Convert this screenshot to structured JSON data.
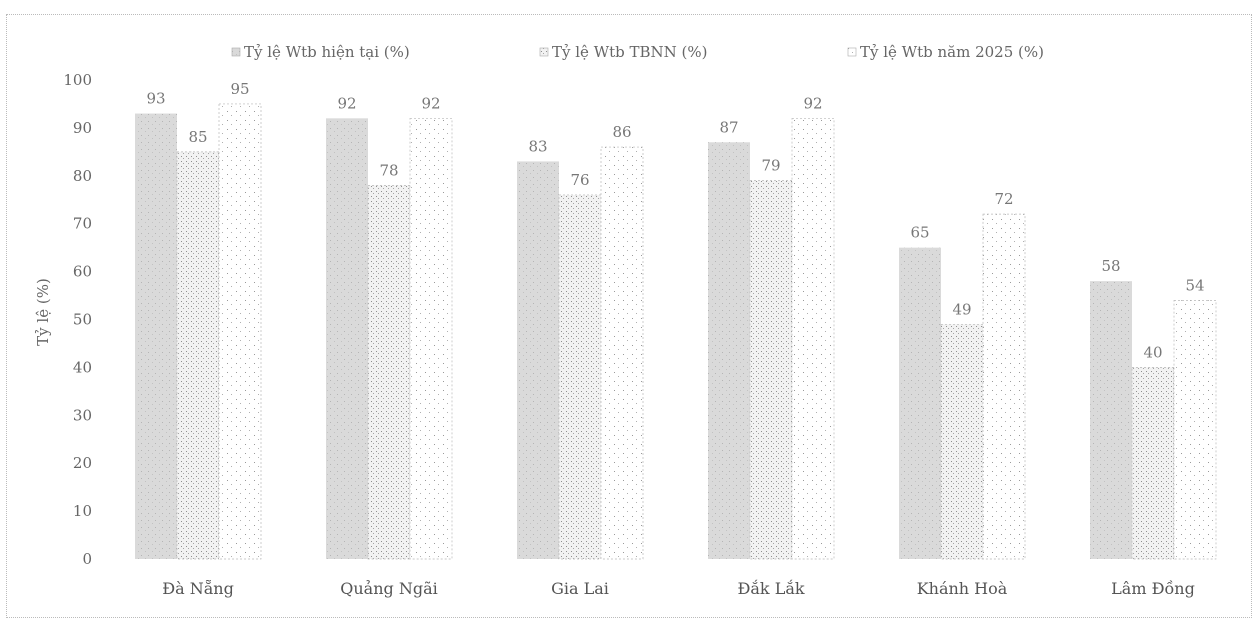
{
  "chart_data": {
    "type": "bar",
    "title": "",
    "xlabel": "",
    "ylabel": "Tỷ lệ (%)",
    "ylim": [
      0,
      100
    ],
    "yticks": [
      0,
      10,
      20,
      30,
      40,
      50,
      60,
      70,
      80,
      90,
      100
    ],
    "grid": false,
    "legend_position": "top",
    "categories": [
      "Đà Nẵng",
      "Quảng Ngãi",
      "Gia Lai",
      "Đắk Lắk",
      "Khánh Hoà",
      "Lâm Đồng"
    ],
    "series": [
      {
        "name": "Tỷ lệ Wtb hiện tại (%)",
        "values": [
          93,
          92,
          83,
          87,
          65,
          58
        ],
        "color": "#d9d9d9",
        "pattern": "solid-speckle"
      },
      {
        "name": "Tỷ lệ Wtb TBNN (%)",
        "values": [
          85,
          78,
          76,
          79,
          49,
          40
        ],
        "color": "#cfcfcf",
        "pattern": "dots"
      },
      {
        "name": "Tỷ lệ Wtb năm 2025 (%)",
        "values": [
          95,
          92,
          86,
          92,
          72,
          54
        ],
        "color": "#e2e2e2",
        "pattern": "sparse-dots"
      }
    ],
    "data_labels": [
      [
        "93",
        "85",
        "95"
      ],
      [
        "92",
        "78",
        "92"
      ],
      [
        "83",
        "76",
        "86"
      ],
      [
        "87",
        "79",
        "92"
      ],
      [
        "65",
        "49",
        "72"
      ],
      [
        "58",
        "40",
        "54"
      ]
    ]
  }
}
